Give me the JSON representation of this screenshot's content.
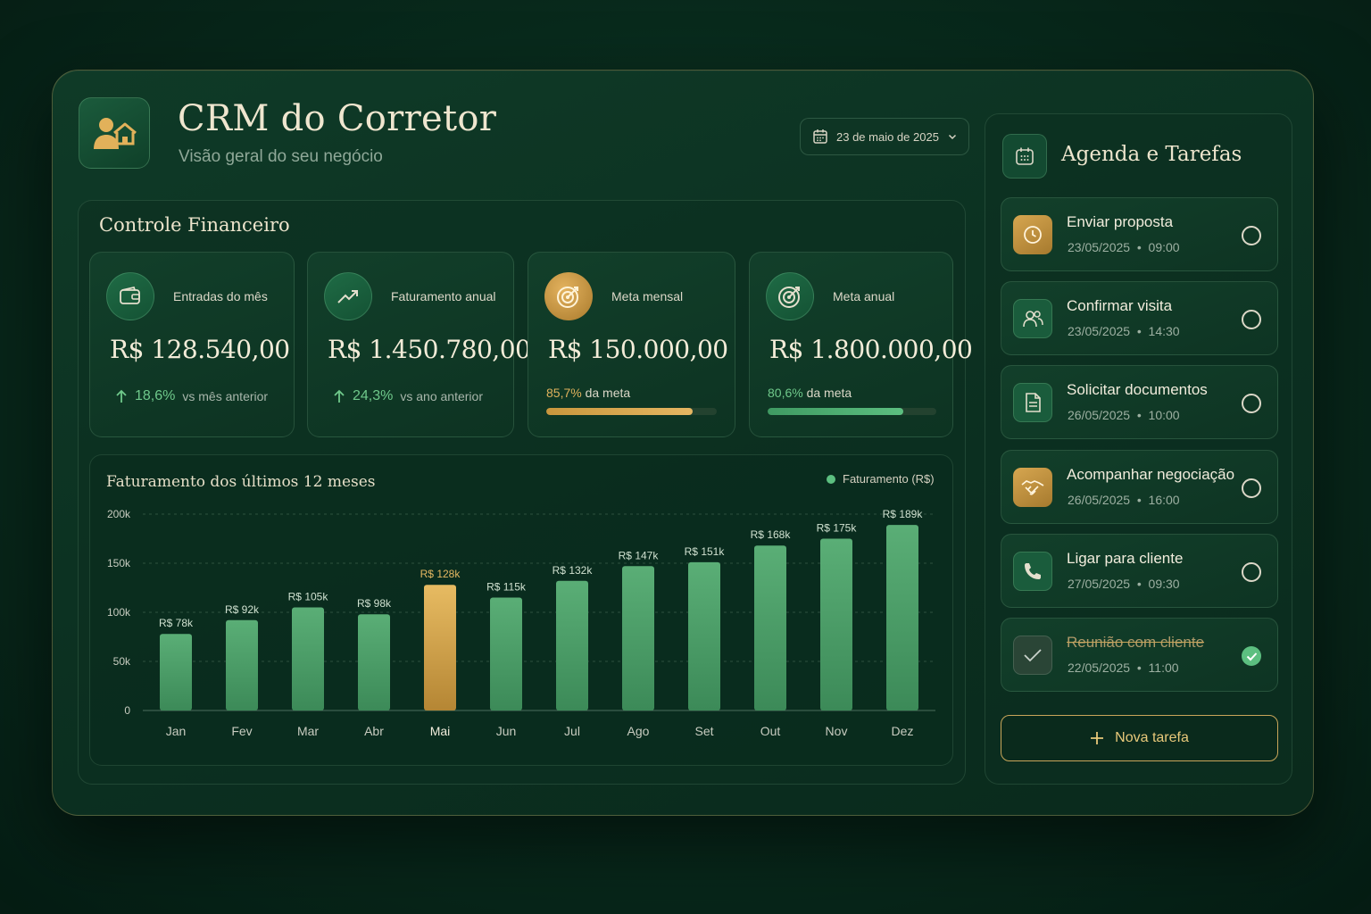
{
  "header": {
    "title": "CRM do Corretor",
    "subtitle": "Visão geral do seu negócio",
    "date": "23 de maio de 2025"
  },
  "finance": {
    "title": "Controle Financeiro",
    "cards": [
      {
        "label": "Entradas do mês",
        "value": "R$ 128.540,00",
        "delta": "18,6%",
        "comparison": "vs mês anterior",
        "icon": "wallet-icon"
      },
      {
        "label": "Faturamento anual",
        "value": "R$ 1.450.780,00",
        "delta": "24,3%",
        "comparison": "vs ano anterior",
        "icon": "trend-up-icon"
      },
      {
        "label": "Meta mensal",
        "value": "R$ 150.000,00",
        "progress_pct": "85,7%",
        "progress_text": "da meta",
        "progress": 0.857,
        "icon": "target-icon"
      },
      {
        "label": "Meta anual",
        "value": "R$ 1.800.000,00",
        "progress_pct": "80,6%",
        "progress_text": "da meta",
        "progress": 0.806,
        "icon": "target-icon"
      }
    ]
  },
  "chart_data": {
    "type": "bar",
    "title": "Faturamento dos últimos 12 meses",
    "legend": "Faturamento (R$)",
    "legend_position": "top-right",
    "categories": [
      "Jan",
      "Fev",
      "Mar",
      "Abr",
      "Mai",
      "Jun",
      "Jul",
      "Ago",
      "Set",
      "Out",
      "Nov",
      "Dez"
    ],
    "values": [
      78,
      92,
      105,
      98,
      128,
      115,
      132,
      147,
      151,
      168,
      175,
      189
    ],
    "value_labels": [
      "R$ 78k",
      "R$ 92k",
      "R$ 105k",
      "R$ 98k",
      "R$ 128k",
      "R$ 115k",
      "R$ 132k",
      "R$ 147k",
      "R$ 151k",
      "R$ 168k",
      "R$ 175k",
      "R$ 189k"
    ],
    "highlight_index": 4,
    "yticks": [
      0,
      50,
      100,
      150,
      200
    ],
    "ytick_labels": [
      "0",
      "50k",
      "100k",
      "150k",
      "200k"
    ],
    "ylim": [
      0,
      200
    ],
    "grid": true,
    "colors": {
      "bar": "#4f9f6a",
      "highlight": "#d9a94f"
    }
  },
  "agenda": {
    "title": "Agenda e Tarefas",
    "tasks": [
      {
        "title": "Enviar proposta",
        "date": "23/05/2025",
        "time": "09:00",
        "icon": "clock-icon",
        "style": "gold",
        "done": false
      },
      {
        "title": "Confirmar visita",
        "date": "23/05/2025",
        "time": "14:30",
        "icon": "users-icon",
        "style": "green",
        "done": false
      },
      {
        "title": "Solicitar documentos",
        "date": "26/05/2025",
        "time": "10:00",
        "icon": "document-icon",
        "style": "green",
        "done": false
      },
      {
        "title": "Acompanhar negociação",
        "date": "26/05/2025",
        "time": "16:00",
        "icon": "handshake-icon",
        "style": "gold",
        "done": false
      },
      {
        "title": "Ligar para cliente",
        "date": "27/05/2025",
        "time": "09:30",
        "icon": "phone-icon",
        "style": "green",
        "done": false
      },
      {
        "title": "Reunião com cliente",
        "date": "22/05/2025",
        "time": "11:00",
        "icon": "check-icon",
        "style": "gray",
        "done": true
      }
    ],
    "new_task_label": "Nova tarefa"
  }
}
